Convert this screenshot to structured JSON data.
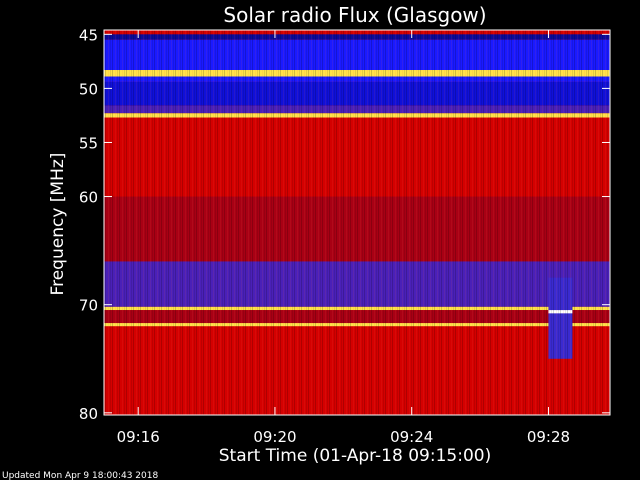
{
  "chart_data": {
    "type": "heatmap",
    "title": "Solar radio Flux (Glasgow)",
    "xlabel": "Start Time (01-Apr-18 09:15:00)",
    "ylabel": "Frequency [MHz]",
    "x_tick_labels": [
      "09:16",
      "09:20",
      "09:24",
      "09:28"
    ],
    "x_ticks_minutes": [
      1,
      5,
      9,
      13
    ],
    "x_range_minutes": [
      0,
      14.8
    ],
    "y_tick_labels": [
      "45",
      "50",
      "55",
      "60",
      "70",
      "80"
    ],
    "y_ticks_mhz": [
      45,
      50,
      55,
      60,
      70,
      80
    ],
    "y_range_mhz": [
      44.6,
      80.2
    ],
    "y_axis_inverted": true,
    "colors": {
      "low": "#1a1aff",
      "mid": "#d40000",
      "high": "#ffe24a",
      "peak": "#ffffff",
      "background": "#000000"
    },
    "bands": [
      {
        "from": 45.0,
        "to": 45.5,
        "level": "low-dark"
      },
      {
        "from": 45.5,
        "to": 48.3,
        "level": "low"
      },
      {
        "from": 48.3,
        "to": 48.9,
        "level": "high"
      },
      {
        "from": 48.9,
        "to": 49.4,
        "level": "low"
      },
      {
        "from": 49.4,
        "to": 51.6,
        "level": "low-deep"
      },
      {
        "from": 51.6,
        "to": 52.3,
        "level": "low-mid"
      },
      {
        "from": 52.3,
        "to": 52.7,
        "level": "high"
      },
      {
        "from": 52.7,
        "to": 60.0,
        "level": "mid"
      },
      {
        "from": 60.0,
        "to": 66.0,
        "level": "mid-dark"
      },
      {
        "from": 66.0,
        "to": 70.2,
        "level": "low-mid"
      },
      {
        "from": 70.2,
        "to": 70.5,
        "level": "high"
      },
      {
        "from": 70.5,
        "to": 71.7,
        "level": "mid-dark"
      },
      {
        "from": 71.7,
        "to": 72.0,
        "level": "high"
      },
      {
        "from": 72.0,
        "to": 80.0,
        "level": "mid"
      }
    ],
    "features": [
      {
        "name": "burst",
        "t_start": 13.0,
        "t_end": 13.7,
        "f_low": 67.5,
        "f_high": 75.0
      },
      {
        "name": "flash",
        "t_start": 13.0,
        "t_end": 13.7,
        "f_low": 70.5,
        "f_high": 70.8
      }
    ]
  },
  "footer": {
    "updated": "Updated Mon Apr  9 18:00:43 2018"
  }
}
